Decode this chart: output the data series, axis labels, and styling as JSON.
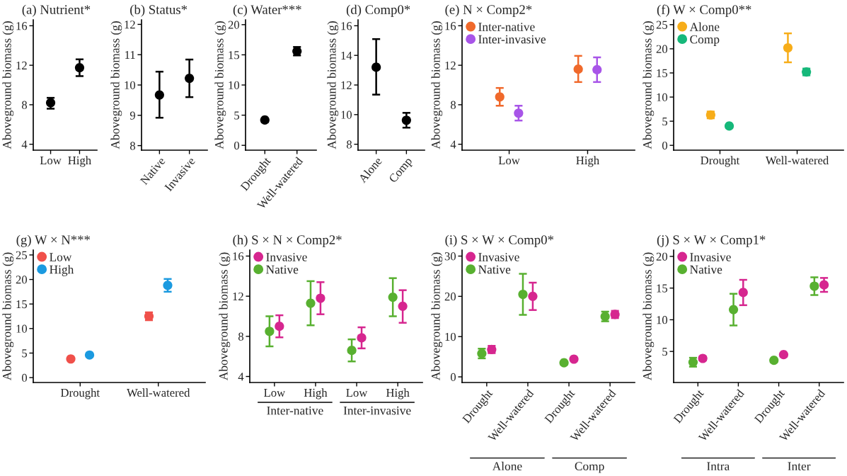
{
  "chart_data": [
    {
      "type": "scatter",
      "title": "(a) Nutrient*",
      "ylabel": "Aboveground biomass (g)",
      "categories": [
        "Low",
        "High"
      ],
      "ylim": [
        3.4,
        16.6
      ],
      "yticks": [
        4,
        8,
        12,
        16
      ],
      "grid": false,
      "marker": "circle",
      "series": [
        {
          "color": "#000000",
          "values": [
            8.2,
            11.75
          ],
          "errors": [
            [
              7.6,
              8.7
            ],
            [
              10.9,
              12.6
            ]
          ]
        }
      ]
    },
    {
      "type": "scatter",
      "title": "(b) Status*",
      "ylabel": "Aboveground biomass (g)",
      "categories": [
        "Native",
        "Invasive"
      ],
      "ylim": [
        7.85,
        12.15
      ],
      "yticks": [
        8,
        9,
        10,
        11,
        12
      ],
      "grid": false,
      "marker": "circle",
      "series": [
        {
          "color": "#000000",
          "values": [
            9.67,
            10.22
          ],
          "errors": [
            [
              8.92,
              10.44
            ],
            [
              9.6,
              10.84
            ]
          ]
        }
      ]
    },
    {
      "type": "scatter",
      "title": "(c) Water***",
      "ylabel": "Aboveground biomass (g)",
      "categories": [
        "Drought",
        "Well-watered"
      ],
      "ylim": [
        -0.8,
        20.8
      ],
      "yticks": [
        0,
        5,
        10,
        15,
        20
      ],
      "grid": false,
      "marker": "circle",
      "series": [
        {
          "color": "#000000",
          "values": [
            4.2,
            15.6
          ],
          "errors": [
            null,
            [
              14.9,
              16.3
            ]
          ]
        }
      ]
    },
    {
      "type": "scatter",
      "title": "(d) Comp0*",
      "ylabel": "Aboveground biomass (g)",
      "categories": [
        "Alone",
        "Comp"
      ],
      "ylim": [
        7.6,
        16.4
      ],
      "yticks": [
        8,
        10,
        12,
        14,
        16
      ],
      "grid": false,
      "marker": "circle",
      "series": [
        {
          "color": "#000000",
          "values": [
            13.2,
            9.62
          ],
          "errors": [
            [
              11.35,
              15.1
            ],
            [
              9.12,
              10.12
            ]
          ]
        }
      ]
    },
    {
      "type": "scatter",
      "title": "(e) N × Comp2*",
      "ylabel": "Aboveground biomass (g)",
      "categories": [
        "Low",
        "High"
      ],
      "ylim": [
        3.4,
        16.6
      ],
      "yticks": [
        4,
        8,
        12,
        16
      ],
      "grid": false,
      "marker": "circle",
      "legend": "top left",
      "series": [
        {
          "name": "Inter-native",
          "color": "#f0692b",
          "values": [
            8.8,
            11.6
          ],
          "errors": [
            [
              7.9,
              9.7
            ],
            [
              10.3,
              12.95
            ]
          ]
        },
        {
          "name": "Inter-invasive",
          "color": "#a855e8",
          "values": [
            7.15,
            11.55
          ],
          "errors": [
            [
              6.4,
              7.9
            ],
            [
              10.3,
              12.8
            ]
          ]
        }
      ]
    },
    {
      "type": "scatter",
      "title": "(f) W × Comp0**",
      "ylabel": "Aboveground biomass (g)",
      "categories": [
        "Drought",
        "Well-watered"
      ],
      "ylim": [
        -1.0,
        26.0
      ],
      "yticks": [
        0,
        5,
        10,
        15,
        20,
        25
      ],
      "grid": false,
      "marker": "circle",
      "legend": "top left",
      "series": [
        {
          "name": "Alone",
          "color": "#f7ad19",
          "values": [
            6.3,
            20.2
          ],
          "errors": [
            [
              5.6,
              7.0
            ],
            [
              17.2,
              23.2
            ]
          ]
        },
        {
          "name": "Comp",
          "color": "#16b87a",
          "values": [
            4.0,
            15.2
          ],
          "errors": [
            null,
            [
              14.5,
              15.9
            ]
          ]
        }
      ]
    },
    {
      "type": "scatter",
      "title": "(g) W × N***",
      "ylabel": "Aboveground biomass (g)",
      "categories": [
        "Drought",
        "Well-watered"
      ],
      "ylim": [
        -1.0,
        26.0
      ],
      "yticks": [
        0,
        5,
        10,
        15,
        20,
        25
      ],
      "grid": false,
      "marker": "circle",
      "legend": "top left",
      "series": [
        {
          "name": "Low",
          "color": "#f0504a",
          "values": [
            3.8,
            12.5
          ],
          "errors": [
            null,
            [
              11.7,
              13.3
            ]
          ]
        },
        {
          "name": "High",
          "color": "#1b9ae0",
          "values": [
            4.6,
            18.8
          ],
          "errors": [
            null,
            [
              17.5,
              20.1
            ]
          ]
        }
      ]
    },
    {
      "type": "scatter",
      "title": "(h) S × N × Comp2*",
      "ylabel": "Aboveground biomass (g)",
      "categories": [
        "Low",
        "High",
        "Low",
        "High"
      ],
      "ylim": [
        3.4,
        16.6
      ],
      "yticks": [
        4,
        8,
        12,
        16
      ],
      "grid": false,
      "marker": "circle",
      "legend": "top left",
      "annotations": [
        "Inter-native",
        "Inter-invasive"
      ],
      "series": [
        {
          "name": "Invasive",
          "color": "#d6268f",
          "values": [
            9.0,
            11.8,
            7.85,
            11.0
          ],
          "errors": [
            [
              7.9,
              10.1
            ],
            [
              10.2,
              13.4
            ],
            [
              6.8,
              8.9
            ],
            [
              9.35,
              12.6
            ]
          ]
        },
        {
          "name": "Native",
          "color": "#58b030",
          "values": [
            8.5,
            11.3,
            6.6,
            11.9
          ],
          "errors": [
            [
              7.0,
              10.0
            ],
            [
              9.1,
              13.5
            ],
            [
              5.5,
              7.7
            ],
            [
              10.0,
              13.8
            ]
          ]
        }
      ]
    },
    {
      "type": "scatter",
      "title": "(i) S × W × Comp0*",
      "ylabel": "Aboveground biomass (g)",
      "categories": [
        "Drought",
        "Well-watered",
        "Drought",
        "Well-watered"
      ],
      "ylim": [
        -1.4,
        31.5
      ],
      "yticks": [
        0,
        10,
        20,
        30
      ],
      "grid": false,
      "marker": "circle",
      "legend": "top left",
      "annotations": [
        "Alone",
        "Comp"
      ],
      "series": [
        {
          "name": "Invasive",
          "color": "#d6268f",
          "values": [
            6.8,
            20.0,
            4.4,
            15.5
          ],
          "errors": [
            [
              5.9,
              7.7
            ],
            [
              16.6,
              23.4
            ],
            null,
            [
              14.6,
              16.4
            ]
          ]
        },
        {
          "name": "Native",
          "color": "#58b030",
          "values": [
            5.8,
            20.5,
            3.5,
            15.0
          ],
          "errors": [
            [
              4.6,
              7.0
            ],
            [
              15.4,
              25.6
            ],
            null,
            [
              13.8,
              16.2
            ]
          ]
        }
      ]
    },
    {
      "type": "scatter",
      "title": "(j) S × W × Comp1*",
      "ylabel": "Aboveground biomass (g)",
      "categories": [
        "Drought",
        "Well-watered",
        "Drought",
        "Well-watered"
      ],
      "ylim": [
        0.1,
        21.0
      ],
      "yticks": [
        5,
        10,
        15,
        20
      ],
      "grid": false,
      "marker": "circle",
      "legend": "top left",
      "annotations": [
        "Intra",
        "Inter"
      ],
      "series": [
        {
          "name": "Invasive",
          "color": "#d6268f",
          "values": [
            3.9,
            14.3,
            4.5,
            15.5
          ],
          "errors": [
            [
              3.6,
              4.2
            ],
            [
              12.3,
              16.3
            ],
            null,
            [
              14.4,
              16.6
            ]
          ]
        },
        {
          "name": "Native",
          "color": "#58b030",
          "values": [
            3.3,
            11.6,
            3.6,
            15.3
          ],
          "errors": [
            [
              2.6,
              4.0
            ],
            [
              9.1,
              14.1
            ],
            null,
            [
              13.9,
              16.7
            ]
          ]
        }
      ]
    }
  ]
}
